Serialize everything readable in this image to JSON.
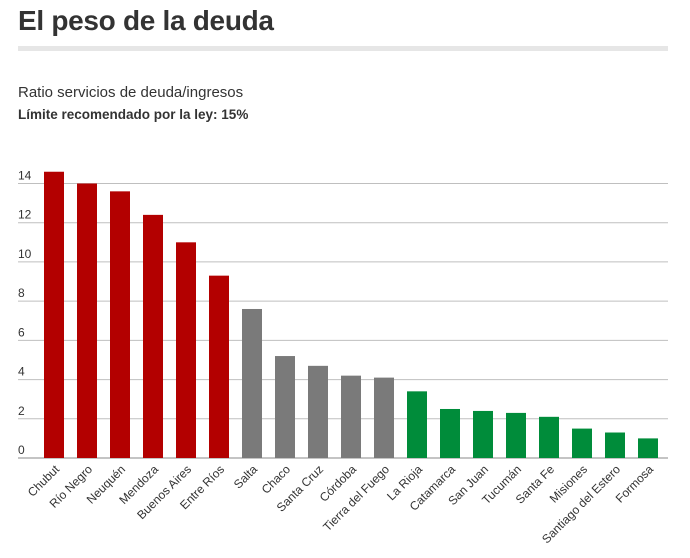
{
  "header": {
    "title": "El peso de la deuda",
    "subtitle": "Ratio servicios de deuda/ingresos",
    "note": "Límite recomendado por la ley: 15%"
  },
  "colors": {
    "high": "#b30000",
    "mid": "#7a7a7a",
    "low": "#008c3a",
    "grid": "#bfbfbf"
  },
  "chart_data": {
    "type": "bar",
    "title": "El peso de la deuda",
    "subtitle": "Ratio servicios de deuda/ingresos",
    "xlabel": "",
    "ylabel": "",
    "ylim": [
      0,
      14
    ],
    "yticks": [
      0,
      2,
      4,
      6,
      8,
      10,
      12,
      14
    ],
    "grid": true,
    "legend": "none",
    "categories": [
      "Chubut",
      "Río Negro",
      "Neuquén",
      "Mendoza",
      "Buenos Aires",
      "Entre Ríos",
      "Salta",
      "Chaco",
      "Santa Cruz",
      "Córdoba",
      "Tierra del Fuego",
      "La Rioja",
      "Catamarca",
      "San Juan",
      "Tucumán",
      "Santa Fe",
      "Misiones",
      "Santiago del Estero",
      "Formosa"
    ],
    "values": [
      14.6,
      14.0,
      13.6,
      12.4,
      11.0,
      9.3,
      7.6,
      5.2,
      4.7,
      4.2,
      4.1,
      3.4,
      2.5,
      2.4,
      2.3,
      2.1,
      1.5,
      1.3,
      1.0
    ],
    "groups": [
      "high",
      "high",
      "high",
      "high",
      "high",
      "high",
      "mid",
      "mid",
      "mid",
      "mid",
      "mid",
      "low",
      "low",
      "low",
      "low",
      "low",
      "low",
      "low",
      "low"
    ]
  }
}
